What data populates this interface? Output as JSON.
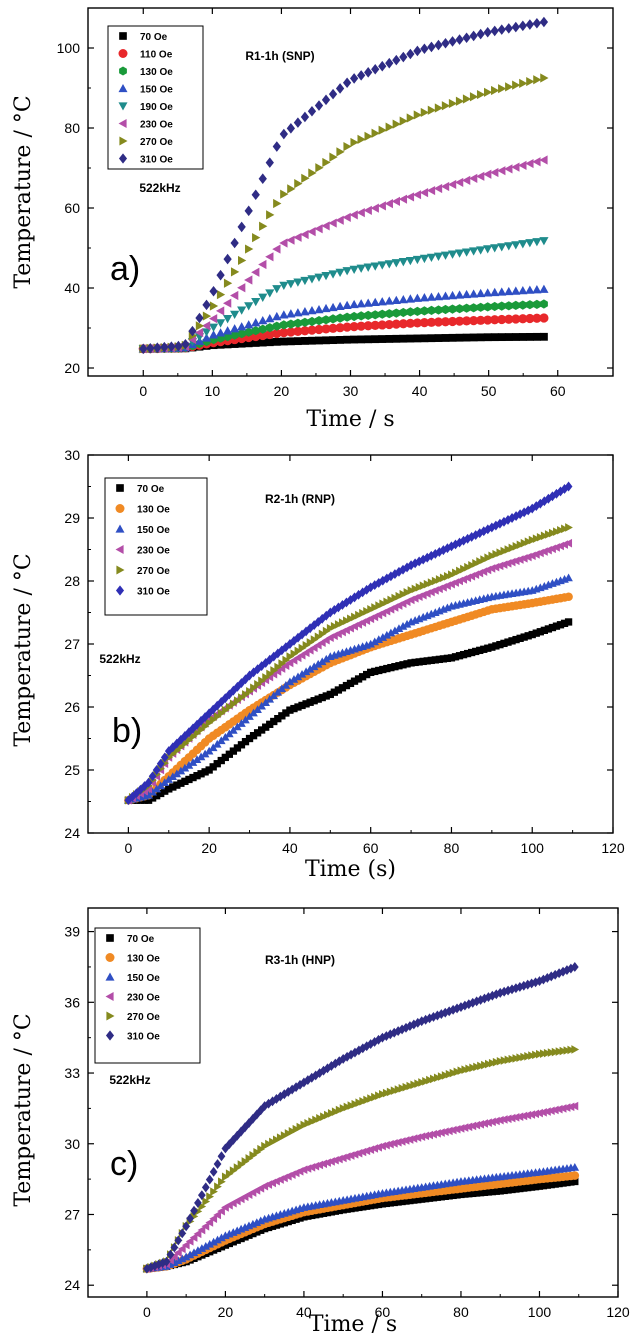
{
  "chart_data": [
    {
      "type": "scatter",
      "panel_letter": "a)",
      "title": "R1-1h (SNP)",
      "annotation": "522kHz",
      "xlabel": "Time / s",
      "ylabel": "Temperature / °C",
      "xlim": [
        -8,
        68
      ],
      "ylim": [
        18,
        110
      ],
      "xticks": [
        0,
        10,
        20,
        30,
        40,
        50,
        60
      ],
      "yticks": [
        20,
        40,
        60,
        80,
        100
      ],
      "x_range": [
        0,
        58
      ],
      "n_points": 58,
      "legend_position": "top-left",
      "series": [
        {
          "name": "70 Oe",
          "marker": "square",
          "color": "#000000",
          "values": [
            [
              0,
              24.8
            ],
            [
              6,
              24.9
            ],
            [
              10,
              25.7
            ],
            [
              20,
              26.6
            ],
            [
              30,
              27.1
            ],
            [
              40,
              27.4
            ],
            [
              50,
              27.7
            ],
            [
              58,
              27.8
            ]
          ]
        },
        {
          "name": "110 Oe",
          "marker": "circle",
          "color": "#e8282b",
          "values": [
            [
              0,
              24.8
            ],
            [
              6,
              25.0
            ],
            [
              10,
              26.3
            ],
            [
              20,
              28.8
            ],
            [
              30,
              30.3
            ],
            [
              40,
              31.3
            ],
            [
              50,
              32.0
            ],
            [
              58,
              32.5
            ]
          ]
        },
        {
          "name": "130 Oe",
          "marker": "hexagon",
          "color": "#1a9a3a",
          "values": [
            [
              0,
              24.8
            ],
            [
              6,
              25.0
            ],
            [
              10,
              27.0
            ],
            [
              20,
              30.7
            ],
            [
              30,
              32.8
            ],
            [
              40,
              34.2
            ],
            [
              50,
              35.3
            ],
            [
              58,
              36.0
            ]
          ]
        },
        {
          "name": "150 Oe",
          "marker": "triangle-up",
          "color": "#2f4fc4",
          "values": [
            [
              0,
              24.8
            ],
            [
              6,
              25.0
            ],
            [
              10,
              28.2
            ],
            [
              20,
              33.2
            ],
            [
              30,
              35.8
            ],
            [
              40,
              37.5
            ],
            [
              50,
              38.8
            ],
            [
              58,
              39.7
            ]
          ]
        },
        {
          "name": "190 Oe",
          "marker": "triangle-down",
          "color": "#1f8c8c",
          "values": [
            [
              0,
              24.8
            ],
            [
              6,
              25.2
            ],
            [
              10,
              30.0
            ],
            [
              20,
              40.5
            ],
            [
              30,
              44.5
            ],
            [
              40,
              47.2
            ],
            [
              50,
              49.8
            ],
            [
              58,
              51.8
            ]
          ]
        },
        {
          "name": "230 Oe",
          "marker": "triangle-left",
          "color": "#b34ea8",
          "values": [
            [
              0,
              24.8
            ],
            [
              6,
              25.2
            ],
            [
              10,
              32.0
            ],
            [
              20,
              51.0
            ],
            [
              30,
              58.0
            ],
            [
              40,
              63.5
            ],
            [
              50,
              68.5
            ],
            [
              58,
              72.0
            ]
          ]
        },
        {
          "name": "270 Oe",
          "marker": "triangle-right",
          "color": "#858a1e",
          "values": [
            [
              0,
              24.8
            ],
            [
              6,
              25.4
            ],
            [
              10,
              35.0
            ],
            [
              20,
              63.0
            ],
            [
              30,
              76.0
            ],
            [
              40,
              83.5
            ],
            [
              50,
              89.0
            ],
            [
              58,
              92.5
            ]
          ]
        },
        {
          "name": "310 Oe",
          "marker": "diamond",
          "color": "#2f2c85",
          "values": [
            [
              0,
              24.8
            ],
            [
              6,
              25.6
            ],
            [
              10,
              38.5
            ],
            [
              20,
              78.0
            ],
            [
              30,
              92.0
            ],
            [
              40,
              99.5
            ],
            [
              50,
              104.0
            ],
            [
              58,
              106.5
            ]
          ]
        }
      ]
    },
    {
      "type": "scatter",
      "panel_letter": "b)",
      "title": "R2-1h (RNP)",
      "annotation": "522kHz",
      "xlabel": "Time (s)",
      "ylabel": "Temperature / °C",
      "xlim": [
        -10,
        120
      ],
      "ylim": [
        24,
        30
      ],
      "xticks": [
        0,
        20,
        40,
        60,
        80,
        100,
        120
      ],
      "yticks": [
        24,
        25,
        26,
        27,
        28,
        29,
        30
      ],
      "x_range": [
        0,
        109
      ],
      "n_points": 110,
      "legend_position": "top-left",
      "series": [
        {
          "name": "70 Oe",
          "marker": "square",
          "color": "#000000",
          "values": [
            [
              0,
              24.52
            ],
            [
              5,
              24.52
            ],
            [
              10,
              24.7
            ],
            [
              20,
              25.0
            ],
            [
              30,
              25.5
            ],
            [
              40,
              25.95
            ],
            [
              50,
              26.2
            ],
            [
              60,
              26.55
            ],
            [
              70,
              26.7
            ],
            [
              80,
              26.78
            ],
            [
              90,
              26.95
            ],
            [
              100,
              27.15
            ],
            [
              109,
              27.35
            ]
          ]
        },
        {
          "name": "130 Oe",
          "marker": "circle",
          "color": "#f08a24",
          "values": [
            [
              0,
              24.52
            ],
            [
              5,
              24.6
            ],
            [
              10,
              24.9
            ],
            [
              20,
              25.5
            ],
            [
              30,
              25.95
            ],
            [
              40,
              26.35
            ],
            [
              50,
              26.7
            ],
            [
              60,
              26.95
            ],
            [
              70,
              27.15
            ],
            [
              80,
              27.35
            ],
            [
              90,
              27.55
            ],
            [
              100,
              27.65
            ],
            [
              109,
              27.75
            ]
          ]
        },
        {
          "name": "150 Oe",
          "marker": "triangle-up",
          "color": "#2f4fc4",
          "values": [
            [
              0,
              24.52
            ],
            [
              5,
              24.6
            ],
            [
              10,
              24.85
            ],
            [
              20,
              25.3
            ],
            [
              30,
              25.85
            ],
            [
              40,
              26.4
            ],
            [
              50,
              26.8
            ],
            [
              60,
              27.0
            ],
            [
              70,
              27.35
            ],
            [
              80,
              27.6
            ],
            [
              90,
              27.75
            ],
            [
              100,
              27.85
            ],
            [
              109,
              28.05
            ]
          ]
        },
        {
          "name": "230 Oe",
          "marker": "triangle-left",
          "color": "#b34ea8",
          "values": [
            [
              0,
              24.52
            ],
            [
              5,
              24.7
            ],
            [
              10,
              25.2
            ],
            [
              20,
              25.8
            ],
            [
              30,
              26.25
            ],
            [
              40,
              26.7
            ],
            [
              50,
              27.1
            ],
            [
              60,
              27.4
            ],
            [
              70,
              27.7
            ],
            [
              80,
              27.95
            ],
            [
              90,
              28.2
            ],
            [
              100,
              28.4
            ],
            [
              109,
              28.6
            ]
          ]
        },
        {
          "name": "270 Oe",
          "marker": "triangle-right",
          "color": "#858a1e",
          "values": [
            [
              0,
              24.52
            ],
            [
              5,
              24.75
            ],
            [
              10,
              25.2
            ],
            [
              20,
              25.75
            ],
            [
              30,
              26.25
            ],
            [
              40,
              26.8
            ],
            [
              50,
              27.25
            ],
            [
              60,
              27.55
            ],
            [
              70,
              27.85
            ],
            [
              80,
              28.1
            ],
            [
              90,
              28.4
            ],
            [
              100,
              28.65
            ],
            [
              109,
              28.85
            ]
          ]
        },
        {
          "name": "310 Oe",
          "marker": "diamond",
          "color": "#2f2fb5",
          "values": [
            [
              0,
              24.52
            ],
            [
              5,
              24.8
            ],
            [
              10,
              25.3
            ],
            [
              20,
              25.9
            ],
            [
              30,
              26.5
            ],
            [
              40,
              27.0
            ],
            [
              50,
              27.5
            ],
            [
              60,
              27.9
            ],
            [
              70,
              28.25
            ],
            [
              80,
              28.55
            ],
            [
              90,
              28.85
            ],
            [
              100,
              29.15
            ],
            [
              109,
              29.5
            ]
          ]
        }
      ]
    },
    {
      "type": "scatter",
      "panel_letter": "c)",
      "title": "R3-1h (HNP)",
      "annotation": "522kHz",
      "xlabel": "Time / s",
      "ylabel": "Temperature / °C",
      "xlim": [
        -15,
        120
      ],
      "ylim": [
        23.5,
        40
      ],
      "xticks": [
        0,
        20,
        40,
        60,
        80,
        100,
        120
      ],
      "yticks": [
        24,
        27,
        30,
        33,
        36,
        39
      ],
      "x_range": [
        0,
        109
      ],
      "n_points": 110,
      "legend_position": "top-left",
      "series": [
        {
          "name": "70 Oe",
          "marker": "square",
          "color": "#000000",
          "values": [
            [
              0,
              24.7
            ],
            [
              5,
              24.8
            ],
            [
              10,
              25.0
            ],
            [
              20,
              25.7
            ],
            [
              30,
              26.4
            ],
            [
              40,
              26.9
            ],
            [
              50,
              27.2
            ],
            [
              60,
              27.45
            ],
            [
              70,
              27.65
            ],
            [
              80,
              27.85
            ],
            [
              90,
              28.0
            ],
            [
              100,
              28.2
            ],
            [
              109,
              28.4
            ]
          ]
        },
        {
          "name": "130 Oe",
          "marker": "circle",
          "color": "#f08a24",
          "values": [
            [
              0,
              24.7
            ],
            [
              5,
              24.8
            ],
            [
              10,
              25.1
            ],
            [
              20,
              25.9
            ],
            [
              30,
              26.6
            ],
            [
              40,
              27.1
            ],
            [
              50,
              27.4
            ],
            [
              60,
              27.7
            ],
            [
              70,
              27.9
            ],
            [
              80,
              28.1
            ],
            [
              90,
              28.3
            ],
            [
              100,
              28.5
            ],
            [
              109,
              28.65
            ]
          ]
        },
        {
          "name": "150 Oe",
          "marker": "triangle-up",
          "color": "#2f4fc4",
          "values": [
            [
              0,
              24.7
            ],
            [
              5,
              24.8
            ],
            [
              10,
              25.2
            ],
            [
              20,
              26.1
            ],
            [
              30,
              26.8
            ],
            [
              40,
              27.3
            ],
            [
              50,
              27.6
            ],
            [
              60,
              27.9
            ],
            [
              70,
              28.15
            ],
            [
              80,
              28.4
            ],
            [
              90,
              28.6
            ],
            [
              100,
              28.8
            ],
            [
              109,
              29.0
            ]
          ]
        },
        {
          "name": "230 Oe",
          "marker": "triangle-left",
          "color": "#b34ea8",
          "values": [
            [
              0,
              24.7
            ],
            [
              5,
              24.9
            ],
            [
              10,
              25.7
            ],
            [
              20,
              27.3
            ],
            [
              30,
              28.2
            ],
            [
              40,
              28.9
            ],
            [
              50,
              29.4
            ],
            [
              60,
              29.9
            ],
            [
              70,
              30.3
            ],
            [
              80,
              30.65
            ],
            [
              90,
              31.0
            ],
            [
              100,
              31.3
            ],
            [
              109,
              31.6
            ]
          ]
        },
        {
          "name": "270 Oe",
          "marker": "triangle-right",
          "color": "#858a1e",
          "values": [
            [
              0,
              24.7
            ],
            [
              5,
              25.0
            ],
            [
              10,
              26.5
            ],
            [
              20,
              28.6
            ],
            [
              30,
              29.9
            ],
            [
              40,
              30.8
            ],
            [
              50,
              31.5
            ],
            [
              60,
              32.1
            ],
            [
              70,
              32.6
            ],
            [
              80,
              33.1
            ],
            [
              90,
              33.5
            ],
            [
              100,
              33.8
            ],
            [
              109,
              34.0
            ]
          ]
        },
        {
          "name": "310 Oe",
          "marker": "diamond",
          "color": "#2f2c85",
          "values": [
            [
              0,
              24.7
            ],
            [
              5,
              25.0
            ],
            [
              10,
              26.5
            ],
            [
              20,
              29.8
            ],
            [
              30,
              31.6
            ],
            [
              40,
              32.6
            ],
            [
              50,
              33.6
            ],
            [
              60,
              34.5
            ],
            [
              70,
              35.2
            ],
            [
              80,
              35.8
            ],
            [
              90,
              36.4
            ],
            [
              100,
              36.9
            ],
            [
              109,
              37.5
            ]
          ]
        }
      ]
    }
  ]
}
